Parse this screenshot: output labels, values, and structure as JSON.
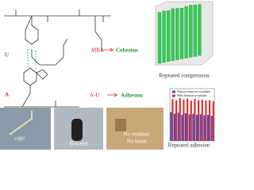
{
  "structure": {
    "u": "U",
    "a": "A",
    "mba": "MBA",
    "cohesion": "Cohesion",
    "au": "A-U",
    "adhesion": "Adhesion"
  },
  "chart_data": [
    {
      "type": "bar3d",
      "xlabel": "Repeated compression",
      "color": "#33cc55",
      "ylim": [
        0,
        100
      ],
      "values": [
        92,
        93,
        92,
        94,
        93,
        92,
        93,
        94,
        93,
        92
      ]
    },
    {
      "type": "bar",
      "xlabel": "Repeated adhesion",
      "ylim": [
        0,
        100
      ],
      "legend": "upper",
      "series": [
        {
          "name": "Without chemical crosslinker",
          "color": "#3050d0",
          "values": [
            55,
            52,
            54,
            50,
            53,
            51,
            52,
            50,
            51,
            49,
            50,
            48
          ]
        },
        {
          "name": "With chemical crosslinker",
          "color": "#e02828",
          "values": [
            80,
            78,
            82,
            79,
            81,
            77,
            80,
            78,
            79,
            77,
            78,
            76
          ]
        }
      ]
    }
  ],
  "photos": [
    {
      "label": "+90°"
    },
    {
      "label": "Bracelet"
    },
    {
      "lines": [
        "No residual",
        "No harm"
      ]
    }
  ]
}
